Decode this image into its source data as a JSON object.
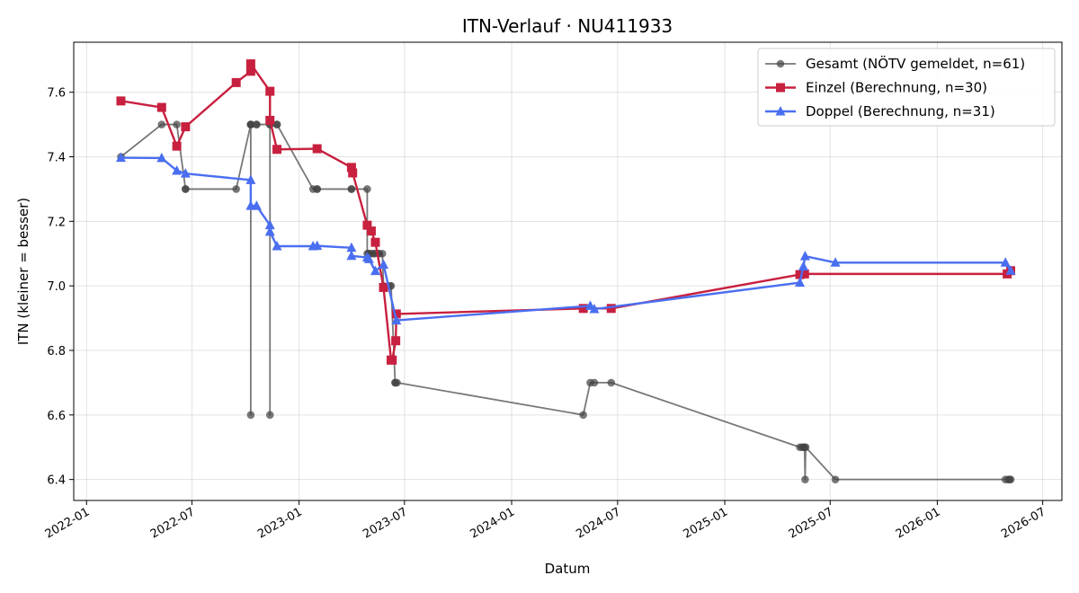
{
  "chart_data": {
    "type": "line",
    "title": "ITN-Verlauf · NU411933",
    "xlabel": "Datum",
    "ylabel": "ITN  (kleiner = besser)",
    "x_type": "date",
    "xlim": [
      "2021-12-10",
      "2026-08-03"
    ],
    "ylim": [
      6.335,
      7.755
    ],
    "x_ticks": [
      "2022-01",
      "2022-07",
      "2023-01",
      "2023-07",
      "2024-01",
      "2024-07",
      "2025-01",
      "2025-07",
      "2026-01",
      "2026-07"
    ],
    "y_ticks": [
      6.4,
      6.6,
      6.8,
      7.0,
      7.2,
      7.4,
      7.6
    ],
    "grid": true,
    "legend": "top-right",
    "series": [
      {
        "name": "Gesamt (NÖTV gemeldet, n=61)",
        "color": "#444444",
        "marker": "circle",
        "x": [
          "2022-03-01",
          "2022-05-10",
          "2022-06-05",
          "2022-06-20",
          "2022-06-20",
          "2022-09-15",
          "2022-10-10",
          "2022-10-10",
          "2022-10-10",
          "2022-10-10",
          "2022-10-20",
          "2022-10-20",
          "2022-11-12",
          "2022-11-12",
          "2022-11-12",
          "2022-11-24",
          "2022-11-24",
          "2023-01-25",
          "2023-02-01",
          "2023-02-01",
          "2023-04-01",
          "2023-04-01",
          "2023-04-28",
          "2023-04-28",
          "2023-05-01",
          "2023-05-01",
          "2023-05-05",
          "2023-05-10",
          "2023-05-10",
          "2023-05-18",
          "2023-05-18",
          "2023-05-24",
          "2023-05-26",
          "2023-06-06",
          "2023-06-08",
          "2023-06-15",
          "2023-06-15",
          "2023-06-18",
          "2024-05-03",
          "2024-05-15",
          "2024-05-22",
          "2024-06-20",
          "2025-05-10",
          "2025-05-14",
          "2025-05-16",
          "2025-05-18",
          "2025-05-19",
          "2025-05-20",
          "2025-07-10",
          "2026-04-28",
          "2026-05-03",
          "2026-05-05",
          "2026-05-07"
        ],
        "y": [
          7.4,
          7.5,
          7.5,
          7.3,
          7.3,
          7.3,
          7.5,
          6.6,
          7.5,
          7.5,
          7.5,
          7.5,
          7.5,
          6.6,
          7.5,
          7.5,
          7.5,
          7.3,
          7.3,
          7.3,
          7.3,
          7.3,
          7.3,
          7.1,
          7.1,
          7.1,
          7.1,
          7.1,
          7.1,
          7.1,
          7.1,
          7.1,
          7.0,
          7.0,
          7.0,
          6.7,
          6.7,
          6.7,
          6.6,
          6.7,
          6.7,
          6.7,
          6.5,
          6.5,
          6.5,
          6.5,
          6.4,
          6.5,
          6.4,
          6.4,
          6.4,
          6.4,
          6.4
        ]
      },
      {
        "name": "Einzel (Berechnung, n=30)",
        "color": "#c8203f",
        "marker": "square",
        "x": [
          "2022-03-01",
          "2022-05-10",
          "2022-06-05",
          "2022-06-20",
          "2022-09-15",
          "2022-10-10",
          "2022-10-10",
          "2022-11-12",
          "2022-11-12",
          "2022-11-24",
          "2023-02-01",
          "2023-04-01",
          "2023-04-03",
          "2023-04-28",
          "2023-05-05",
          "2023-05-12",
          "2023-05-26",
          "2023-06-08",
          "2023-06-10",
          "2023-06-16",
          "2023-06-17",
          "2024-05-03",
          "2024-06-20",
          "2025-05-10",
          "2025-05-18",
          "2026-05-01",
          "2026-05-07"
        ],
        "y": [
          7.573,
          7.553,
          7.433,
          7.493,
          7.63,
          7.665,
          7.688,
          7.603,
          7.513,
          7.423,
          7.425,
          7.367,
          7.35,
          7.188,
          7.17,
          7.135,
          6.995,
          6.77,
          6.77,
          6.83,
          6.913,
          6.93,
          6.93,
          7.035,
          7.037,
          7.037,
          7.047
        ]
      },
      {
        "name": "Doppel (Berechnung, n=31)",
        "color": "#4a6ef0",
        "marker": "triangle",
        "x": [
          "2022-03-01",
          "2022-05-10",
          "2022-06-05",
          "2022-06-20",
          "2022-10-10",
          "2022-10-10",
          "2022-10-20",
          "2022-11-12",
          "2022-11-12",
          "2022-11-24",
          "2023-01-25",
          "2023-02-01",
          "2023-04-01",
          "2023-04-01",
          "2023-04-28",
          "2023-05-01",
          "2023-05-12",
          "2023-05-26",
          "2023-06-17",
          "2024-05-15",
          "2024-05-22",
          "2025-05-10",
          "2025-05-16",
          "2025-05-19",
          "2025-07-10",
          "2026-04-28",
          "2026-05-07"
        ],
        "y": [
          7.397,
          7.396,
          7.357,
          7.348,
          7.328,
          7.248,
          7.248,
          7.188,
          7.168,
          7.123,
          7.123,
          7.124,
          7.118,
          7.093,
          7.088,
          7.083,
          7.046,
          7.066,
          6.893,
          6.938,
          6.928,
          7.01,
          7.06,
          7.092,
          7.072,
          7.072,
          7.047
        ]
      }
    ]
  }
}
